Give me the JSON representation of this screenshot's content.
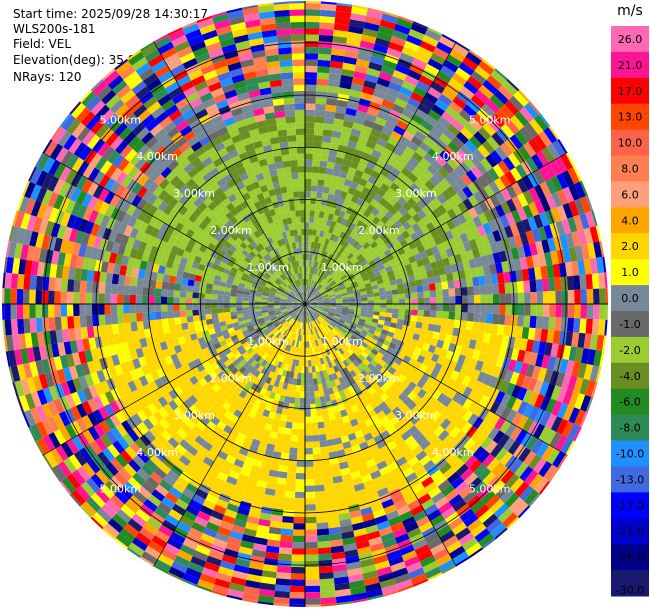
{
  "header": {
    "start_time": "Start time: 2025/09/28 14:30:17",
    "instrument": "WLS200s-181",
    "field": "Field: VEL",
    "elevation": "Elevation(deg): 35.00",
    "nrays": "NRays: 120"
  },
  "colorbar": {
    "unit": "m/s",
    "levels": [
      "26.0",
      "21.0",
      "17.0",
      "13.0",
      "10.0",
      "8.0",
      "6.0",
      "4.0",
      "2.0",
      "1.0",
      "0.0",
      "-1.0",
      "-2.0",
      "-4.0",
      "-6.0",
      "-8.0",
      "-10.0",
      "-13.0",
      "-17.0",
      "-21.0",
      "-26.0",
      "-30.0"
    ],
    "colors": [
      "#ff69b4",
      "#ff1493",
      "#ff0000",
      "#ff4500",
      "#ff6347",
      "#ff7f50",
      "#ffa07a",
      "#ffa500",
      "#ffd700",
      "#ffff00",
      "#778899",
      "#696969",
      "#9acd32",
      "#6b8e23",
      "#228b22",
      "#2e8b57",
      "#1e90ff",
      "#4169e1",
      "#0000ff",
      "#0000cd",
      "#00008b",
      "#191970"
    ]
  },
  "chart_data": {
    "type": "heatmap",
    "projection": "PPI polar plot (azimuth vs range)",
    "field": "VEL",
    "units": "m/s",
    "nrays": 120,
    "range_rings": [
      "1.00km",
      "2.00km",
      "3.00km",
      "4.00km",
      "5.00km"
    ],
    "ring_values_km": [
      1,
      2,
      3,
      4,
      5
    ],
    "max_range_km": 5.8,
    "value_range": [
      -30,
      30
    ],
    "azimuth_sectors_deg": [
      0,
      30,
      60,
      90,
      120,
      150,
      180,
      210,
      240,
      270,
      300,
      330
    ],
    "pattern_description": {
      "near_range_0_1.3km": "mixed gray/green (0 to -2 m/s)",
      "north_1_to_3km": "green (-1 to -4 m/s)",
      "south_1_to_3.5km": "yellow (1 to 4 m/s)",
      "beyond_4km": "noisy, all colors"
    }
  }
}
